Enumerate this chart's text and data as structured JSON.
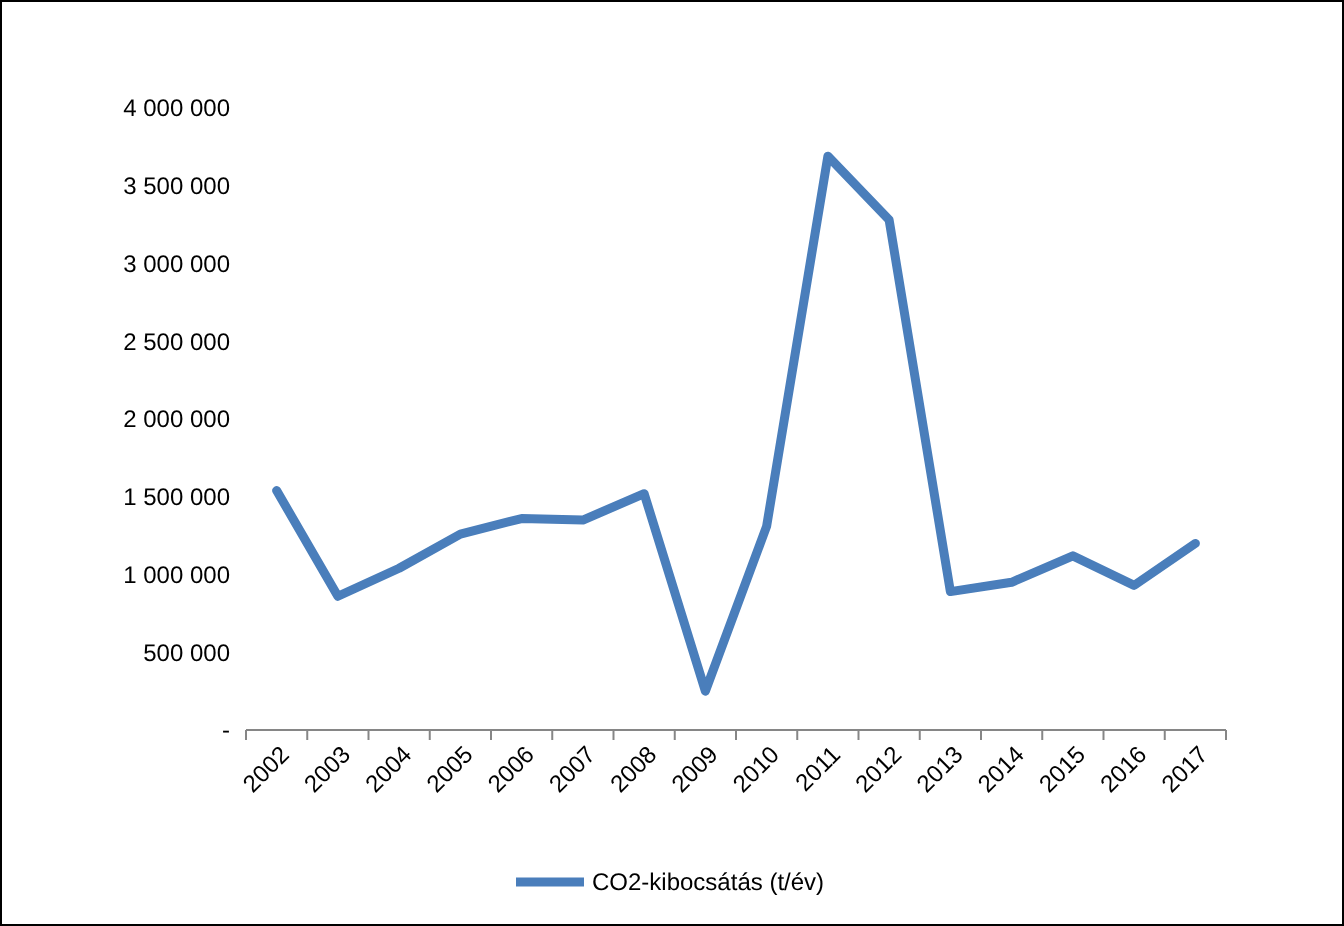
{
  "chart_data": {
    "type": "line",
    "categories": [
      "2002",
      "2003",
      "2004",
      "2005",
      "2006",
      "2007",
      "2008",
      "2009",
      "2010",
      "2011",
      "2012",
      "2013",
      "2014",
      "2015",
      "2016",
      "2017"
    ],
    "series": [
      {
        "name": "CO2-kibocsátás (t/év)",
        "color": "#4a7ebb",
        "values": [
          1540000,
          860000,
          1040000,
          1260000,
          1360000,
          1350000,
          1520000,
          250000,
          1310000,
          3690000,
          3280000,
          890000,
          950000,
          1120000,
          930000,
          1200000
        ]
      }
    ],
    "ylim": [
      0,
      4000000
    ],
    "yticks": [
      {
        "value": 0,
        "label": "-"
      },
      {
        "value": 500000,
        "label": "500 000"
      },
      {
        "value": 1000000,
        "label": "1 000 000"
      },
      {
        "value": 1500000,
        "label": "1 500 000"
      },
      {
        "value": 2000000,
        "label": "2 000 000"
      },
      {
        "value": 2500000,
        "label": "2 500 000"
      },
      {
        "value": 3000000,
        "label": "3 000 000"
      },
      {
        "value": 3500000,
        "label": "3 500 000"
      },
      {
        "value": 4000000,
        "label": "4 000 000"
      }
    ],
    "grid": false,
    "legend": "bottom",
    "marker": "none",
    "line_style": "solid"
  }
}
